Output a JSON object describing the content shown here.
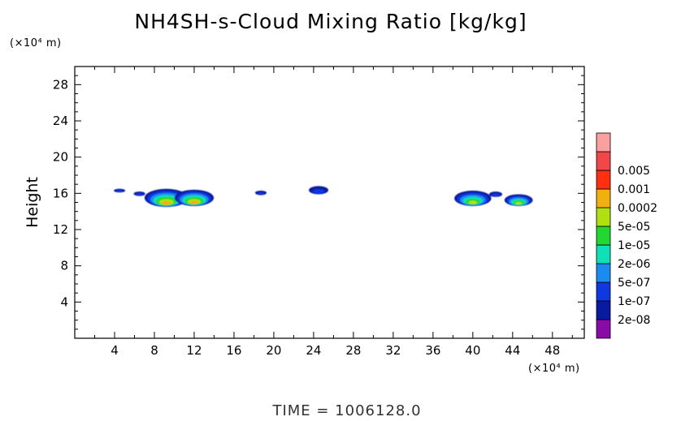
{
  "title": "NH4SH-s-Cloud Mixing Ratio [kg/kg]",
  "footer": "TIME = 1006128.0",
  "chart_data": {
    "type": "heatmap",
    "title": "NH4SH-s-Cloud Mixing Ratio [kg/kg]",
    "xlabel": "",
    "ylabel": "Height",
    "x_unit": "(×10⁴ m)",
    "y_unit": "(×10⁴ m)",
    "xlim": [
      0,
      51.2
    ],
    "ylim": [
      0,
      30
    ],
    "xticks": [
      "4",
      "8",
      "12",
      "16",
      "20",
      "24",
      "28",
      "32",
      "36",
      "40",
      "44",
      "48"
    ],
    "yticks": [
      "4",
      "8",
      "12",
      "16",
      "20",
      "24",
      "28"
    ],
    "grid": false,
    "colorbar": {
      "levels": [
        "2e-08",
        "1e-07",
        "5e-07",
        "2e-06",
        "1e-05",
        "5e-05",
        "0.0002",
        "0.001",
        "0.005"
      ],
      "colors": [
        "#8a0aa8",
        "#0a1aa0",
        "#1038e0",
        "#1a8cf0",
        "#10e0b8",
        "#20d830",
        "#b0e010",
        "#f0b010",
        "#ff3010",
        "#f04848",
        "#f8a0a0"
      ]
    },
    "cloud_clusters": [
      {
        "x_center": 4.5,
        "y_top": 16.5,
        "y_bottom": 16.1,
        "peak_level": "1e-07"
      },
      {
        "x_center": 6.5,
        "y_top": 16.2,
        "y_bottom": 15.7,
        "peak_level": "1e-07"
      },
      {
        "x_center": 9.2,
        "y_top": 16.5,
        "y_bottom": 14.5,
        "peak_level": "0.0002"
      },
      {
        "x_center": 12.0,
        "y_top": 16.4,
        "y_bottom": 14.6,
        "peak_level": "0.0002"
      },
      {
        "x_center": 18.7,
        "y_top": 16.3,
        "y_bottom": 15.8,
        "peak_level": "1e-07"
      },
      {
        "x_center": 24.5,
        "y_top": 16.8,
        "y_bottom": 15.9,
        "peak_level": "1e-07"
      },
      {
        "x_center": 40.0,
        "y_top": 16.3,
        "y_bottom": 14.6,
        "peak_level": "5e-05"
      },
      {
        "x_center": 42.3,
        "y_top": 16.2,
        "y_bottom": 15.6,
        "peak_level": "1e-07"
      },
      {
        "x_center": 44.6,
        "y_top": 15.9,
        "y_bottom": 14.6,
        "peak_level": "5e-05"
      }
    ]
  }
}
